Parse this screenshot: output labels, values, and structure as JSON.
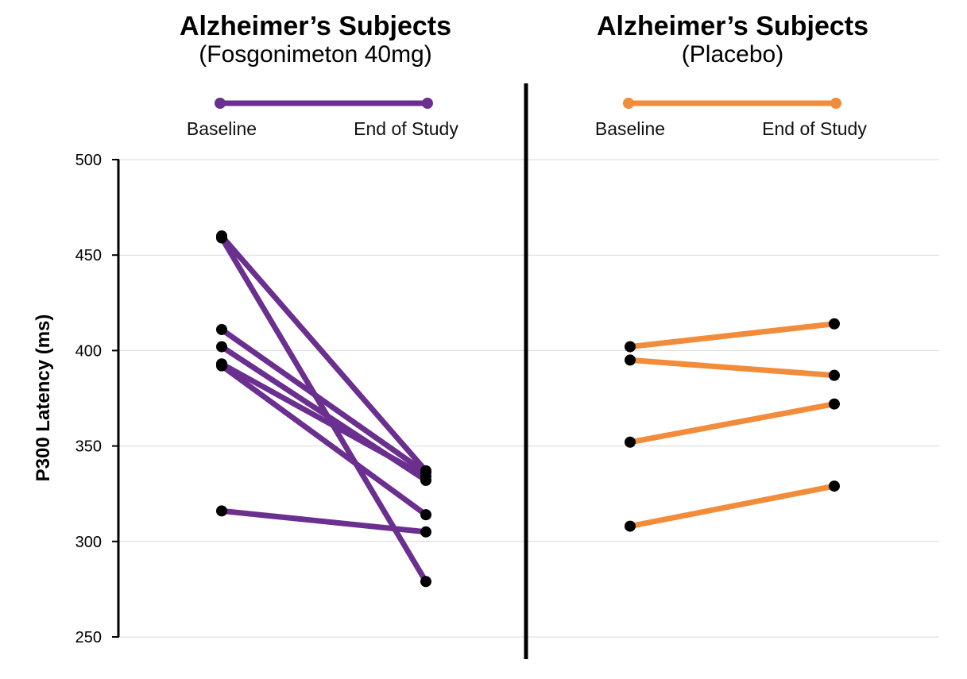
{
  "panels": [
    {
      "title": "Alzheimer’s Subjects",
      "subtitle": "(Fosgonimeton 40mg)",
      "color": "#6b2f8f",
      "legend": [
        "Baseline",
        "End of Study"
      ]
    },
    {
      "title": "Alzheimer’s Subjects",
      "subtitle": "(Placebo)",
      "color": "#f28c3a",
      "legend": [
        "Baseline",
        "End of Study"
      ]
    }
  ],
  "chart_data": {
    "type": "line",
    "ylabel": "P300 Latency (ms)",
    "ylim": [
      250,
      500
    ],
    "yticks": [
      250,
      300,
      350,
      400,
      450,
      500
    ],
    "grid": true,
    "categories": [
      "Baseline",
      "End of Study"
    ],
    "panels": [
      {
        "title": "Alzheimer’s Subjects (Fosgonimeton 40mg)",
        "series": [
          {
            "values": [
              460,
              337
            ]
          },
          {
            "values": [
              459,
              279
            ]
          },
          {
            "values": [
              411,
              336
            ]
          },
          {
            "values": [
              402,
              332
            ]
          },
          {
            "values": [
              393,
              334
            ]
          },
          {
            "values": [
              392,
              314
            ]
          },
          {
            "values": [
              316,
              305
            ]
          }
        ]
      },
      {
        "title": "Alzheimer’s Subjects (Placebo)",
        "series": [
          {
            "values": [
              402,
              414
            ]
          },
          {
            "values": [
              395,
              387
            ]
          },
          {
            "values": [
              352,
              372
            ]
          },
          {
            "values": [
              308,
              329
            ]
          }
        ]
      }
    ]
  }
}
